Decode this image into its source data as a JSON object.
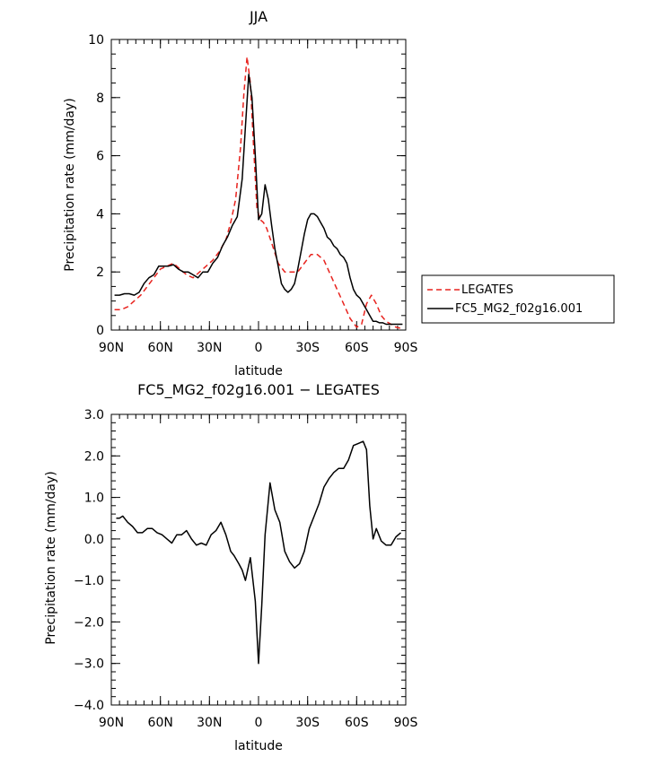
{
  "chart_data": [
    {
      "type": "line",
      "title": "JJA",
      "xlabel": "latitude",
      "ylabel": "Precipitation rate (mm/day)",
      "xlim": [
        90,
        -90
      ],
      "ylim": [
        0,
        10
      ],
      "x_ticks": [
        90,
        60,
        30,
        0,
        -30,
        -60,
        -90
      ],
      "x_tick_labels": [
        "90N",
        "60N",
        "30N",
        "0",
        "30S",
        "60S",
        "90S"
      ],
      "y_ticks": [
        0,
        2,
        4,
        6,
        8,
        10
      ],
      "y_tick_labels": [
        "0",
        "2",
        "4",
        "6",
        "8",
        "10"
      ],
      "legend": "right",
      "series": [
        {
          "name": "LEGATES",
          "color": "#e8231e",
          "dash": "dashed",
          "x": [
            88,
            84,
            80,
            76,
            72,
            68,
            64,
            60,
            56,
            52,
            48,
            44,
            40,
            36,
            32,
            28,
            24,
            20,
            17,
            14,
            11,
            9,
            7,
            5,
            3,
            1,
            -1,
            -3,
            -5,
            -8,
            -12,
            -16,
            -20,
            -24,
            -28,
            -32,
            -36,
            -40,
            -44,
            -48,
            -52,
            -56,
            -60,
            -63,
            -66,
            -69,
            -72,
            -75,
            -78,
            -81,
            -84,
            -88
          ],
          "y": [
            0.7,
            0.7,
            0.8,
            1.0,
            1.2,
            1.5,
            1.8,
            2.1,
            2.2,
            2.3,
            2.1,
            1.9,
            1.8,
            2.0,
            2.2,
            2.4,
            2.7,
            3.1,
            3.7,
            4.5,
            6.3,
            8.1,
            9.4,
            8.5,
            6.3,
            4.2,
            3.8,
            3.7,
            3.5,
            3.0,
            2.3,
            2.0,
            2.0,
            2.0,
            2.3,
            2.6,
            2.6,
            2.4,
            1.9,
            1.4,
            0.9,
            0.4,
            0.1,
            0.2,
            0.9,
            1.2,
            0.9,
            0.5,
            0.3,
            0.2,
            0.1,
            0.05
          ]
        },
        {
          "name": "FC5_MG2_f02g16.001",
          "color": "#000000",
          "dash": "solid",
          "x": [
            88,
            85,
            82,
            79,
            76,
            73,
            70,
            67,
            64,
            61,
            58,
            55,
            52,
            49,
            46,
            43,
            40,
            37,
            34,
            31,
            28,
            25,
            22,
            19,
            16,
            13,
            10,
            8,
            6,
            4,
            2,
            0,
            -2,
            -4,
            -6,
            -8,
            -10,
            -12,
            -14,
            -16,
            -18,
            -20,
            -22,
            -24,
            -26,
            -28,
            -30,
            -32,
            -34,
            -36,
            -38,
            -40,
            -42,
            -44,
            -46,
            -48,
            -50,
            -52,
            -54,
            -56,
            -58,
            -60,
            -62,
            -64,
            -66,
            -68,
            -70,
            -72,
            -74,
            -76,
            -78,
            -80,
            -82,
            -84,
            -86,
            -88
          ],
          "y": [
            1.2,
            1.2,
            1.25,
            1.25,
            1.2,
            1.3,
            1.6,
            1.8,
            1.9,
            2.2,
            2.2,
            2.2,
            2.25,
            2.1,
            2.0,
            2.0,
            1.9,
            1.8,
            2.0,
            2.0,
            2.3,
            2.5,
            2.9,
            3.2,
            3.6,
            3.9,
            5.2,
            7.0,
            8.8,
            8.0,
            6.0,
            3.8,
            4.0,
            5.0,
            4.5,
            3.6,
            2.8,
            2.2,
            1.6,
            1.4,
            1.3,
            1.4,
            1.6,
            2.1,
            2.7,
            3.3,
            3.8,
            4.0,
            4.0,
            3.9,
            3.7,
            3.5,
            3.2,
            3.1,
            2.9,
            2.8,
            2.6,
            2.5,
            2.3,
            1.8,
            1.4,
            1.2,
            1.1,
            0.9,
            0.7,
            0.5,
            0.3,
            0.3,
            0.25,
            0.25,
            0.2,
            0.2,
            0.2,
            0.2,
            0.2,
            0.2
          ]
        }
      ]
    },
    {
      "type": "line",
      "title": "FC5_MG2_f02g16.001 − LEGATES",
      "xlabel": "latitude",
      "ylabel": "Precipitation rate (mm/day)",
      "xlim": [
        90,
        -90
      ],
      "ylim": [
        -4,
        3
      ],
      "x_ticks": [
        90,
        60,
        30,
        0,
        -30,
        -60,
        -90
      ],
      "x_tick_labels": [
        "90N",
        "60N",
        "30N",
        "0",
        "30S",
        "60S",
        "90S"
      ],
      "y_ticks": [
        -4,
        -3,
        -2,
        -1,
        0,
        1,
        2,
        3
      ],
      "y_tick_labels": [
        "−4.0",
        "−3.0",
        "−2.0",
        "−1.0",
        "0.0",
        "1.0",
        "2.0",
        "3.0"
      ],
      "series": [
        {
          "color": "#000000",
          "dash": "solid",
          "x": [
            87,
            85,
            83,
            80,
            77,
            74,
            71,
            68,
            65,
            62,
            59,
            56,
            53,
            50,
            47,
            44,
            41,
            38,
            35,
            32,
            29,
            26,
            23,
            20,
            17,
            15,
            12,
            10,
            8,
            5,
            2,
            0,
            -2,
            -4,
            -7,
            -10,
            -13,
            -16,
            -19,
            -22,
            -25,
            -28,
            -31,
            -34,
            -37,
            -40,
            -43,
            -46,
            -49,
            -52,
            -55,
            -58,
            -61,
            -64,
            -66,
            -68,
            -70,
            -72,
            -75,
            -78,
            -81,
            -84,
            -87
          ],
          "y": [
            0.5,
            0.5,
            0.55,
            0.4,
            0.3,
            0.15,
            0.15,
            0.25,
            0.25,
            0.15,
            0.1,
            0.0,
            -0.1,
            0.1,
            0.1,
            0.2,
            0.0,
            -0.15,
            -0.1,
            -0.15,
            0.1,
            0.2,
            0.4,
            0.1,
            -0.3,
            -0.4,
            -0.6,
            -0.75,
            -1.0,
            -0.45,
            -1.5,
            -3.0,
            -1.6,
            0.1,
            1.35,
            0.7,
            0.4,
            -0.3,
            -0.55,
            -0.7,
            -0.6,
            -0.3,
            0.25,
            0.55,
            0.85,
            1.25,
            1.45,
            1.6,
            1.7,
            1.7,
            1.9,
            2.25,
            2.3,
            2.35,
            2.15,
            0.8,
            0.0,
            0.25,
            -0.05,
            -0.15,
            -0.15,
            0.05,
            0.15
          ]
        }
      ]
    }
  ]
}
